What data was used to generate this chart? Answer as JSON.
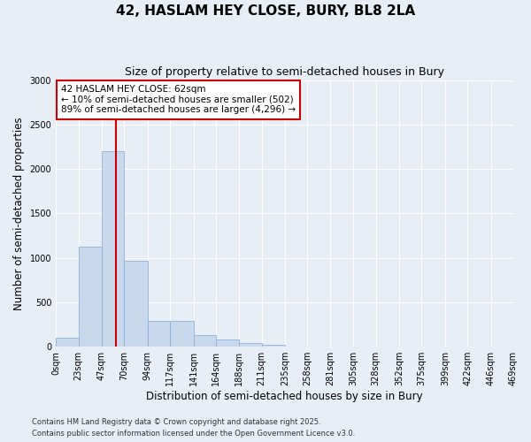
{
  "title": "42, HASLAM HEY CLOSE, BURY, BL8 2LA",
  "subtitle": "Size of property relative to semi-detached houses in Bury",
  "xlabel": "Distribution of semi-detached houses by size in Bury",
  "ylabel": "Number of semi-detached properties",
  "bins": [
    0,
    23,
    47,
    70,
    94,
    117,
    141,
    164,
    188,
    211,
    235,
    258,
    281,
    305,
    328,
    352,
    375,
    399,
    422,
    446,
    469
  ],
  "bin_labels": [
    "0sqm",
    "23sqm",
    "47sqm",
    "70sqm",
    "94sqm",
    "117sqm",
    "141sqm",
    "164sqm",
    "188sqm",
    "211sqm",
    "235sqm",
    "258sqm",
    "281sqm",
    "305sqm",
    "328sqm",
    "352sqm",
    "375sqm",
    "399sqm",
    "422sqm",
    "446sqm",
    "469sqm"
  ],
  "counts": [
    100,
    1130,
    2200,
    970,
    290,
    290,
    130,
    80,
    45,
    20,
    5,
    2,
    1,
    0,
    0,
    0,
    0,
    0,
    0,
    0
  ],
  "bar_color": "#c8d9ee",
  "bar_edge_color": "#8ab4d8",
  "property_size": 62,
  "vline_color": "#cc0000",
  "annotation_text": "42 HASLAM HEY CLOSE: 62sqm\n← 10% of semi-detached houses are smaller (502)\n89% of semi-detached houses are larger (4,296) →",
  "annotation_box_color": "#ffffff",
  "annotation_box_edge_color": "#cc0000",
  "ylim": [
    0,
    3000
  ],
  "yticks": [
    0,
    500,
    1000,
    1500,
    2000,
    2500,
    3000
  ],
  "background_color": "#e8eef6",
  "footer1": "Contains HM Land Registry data © Crown copyright and database right 2025.",
  "footer2": "Contains public sector information licensed under the Open Government Licence v3.0.",
  "title_fontsize": 11,
  "subtitle_fontsize": 9,
  "axis_label_fontsize": 8.5,
  "tick_fontsize": 7,
  "annotation_fontsize": 7.5
}
